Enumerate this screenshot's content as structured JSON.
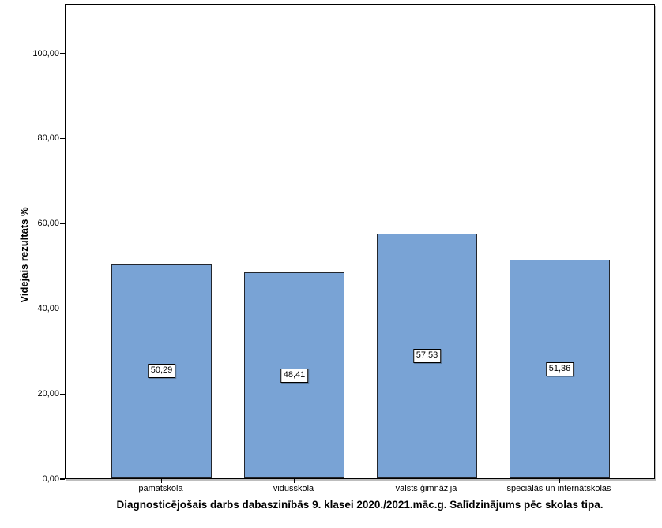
{
  "chart_data": {
    "type": "bar",
    "title": "Diagnosticējošais darbs dabaszinībās 9. klasei 2020./2021.māc.g. Salīdzinājums pēc skolas tipa.",
    "ylabel": "Vidējais rezultāts %",
    "xlabel": "",
    "categories": [
      "pamatskola",
      "vidusskola",
      "valsts ģimnāzija",
      "speciālās un internātskolas"
    ],
    "values": [
      50.29,
      48.41,
      57.53,
      51.36
    ],
    "value_labels": [
      "50,29",
      "48,41",
      "57,53",
      "51,36"
    ],
    "y_tick_values": [
      0,
      20,
      40,
      60,
      80,
      100
    ],
    "y_tick_labels": [
      "0,00",
      "20,00",
      "40,00",
      "60,00",
      "80,00",
      "100,00"
    ],
    "ylim": [
      0,
      111.7
    ],
    "grid": false,
    "legend_position": "none",
    "bar_fill_color": "#79A3D5",
    "bar_border_color": "#23262c",
    "axis_color": "#000000",
    "background_color": "#ffffff"
  }
}
